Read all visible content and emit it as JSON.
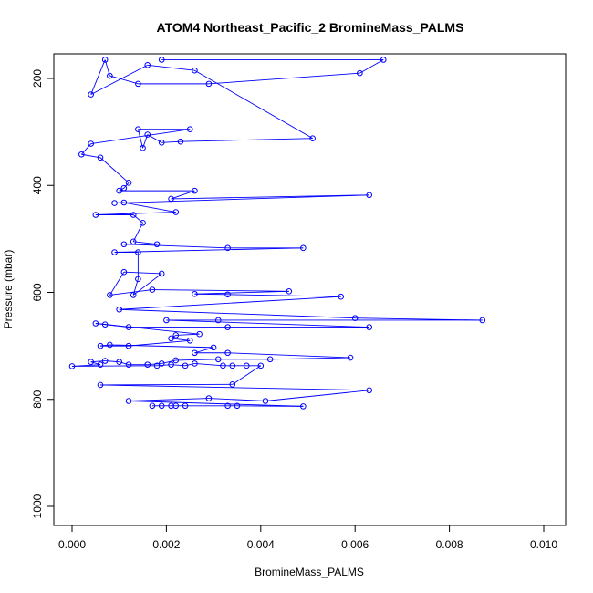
{
  "chart_data": {
    "type": "scatter",
    "title": "ATOM4 Northeast_Pacific_2 BromineMass_PALMS",
    "xlabel": "BromineMass_PALMS",
    "ylabel": "Pressure (mbar)",
    "xlim": [
      0.0,
      0.01
    ],
    "ylim": [
      1030,
      160
    ],
    "y_inverted": true,
    "grid": false,
    "legend": "none",
    "x_ticks": [
      "0.000",
      "0.002",
      "0.004",
      "0.006",
      "0.008",
      "0.010"
    ],
    "x_tick_values": [
      0.0,
      0.002,
      0.004,
      0.006,
      0.008,
      0.01
    ],
    "y_ticks": [
      "200",
      "400",
      "600",
      "800",
      "1000"
    ],
    "y_tick_values": [
      200,
      400,
      600,
      800,
      1000
    ],
    "series": [
      {
        "color": "#0000ff",
        "marker": "open-circle",
        "connected": true,
        "points": [
          [
            0.0019,
            165
          ],
          [
            0.0066,
            165
          ],
          [
            0.0061,
            190
          ],
          [
            0.0029,
            210
          ],
          [
            0.0014,
            210
          ],
          [
            0.0008,
            195
          ],
          [
            0.0007,
            165
          ],
          [
            0.0004,
            230
          ],
          [
            0.0016,
            175
          ],
          [
            0.0026,
            185
          ],
          [
            0.0051,
            312
          ],
          [
            0.0023,
            318
          ],
          [
            0.0019,
            320
          ],
          [
            0.0016,
            305
          ],
          [
            0.0015,
            330
          ],
          [
            0.0014,
            295
          ],
          [
            0.0025,
            295
          ],
          [
            0.0004,
            322
          ],
          [
            0.0002,
            342
          ],
          [
            0.0006,
            348
          ],
          [
            0.0012,
            395
          ],
          [
            0.0011,
            405
          ],
          [
            0.001,
            410
          ],
          [
            0.0026,
            410
          ],
          [
            0.0021,
            425
          ],
          [
            0.0063,
            418
          ],
          [
            0.0009,
            433
          ],
          [
            0.0011,
            432
          ],
          [
            0.0022,
            450
          ],
          [
            0.0005,
            455
          ],
          [
            0.0013,
            455
          ],
          [
            0.0015,
            470
          ],
          [
            0.0013,
            505
          ],
          [
            0.0018,
            510
          ],
          [
            0.0011,
            510
          ],
          [
            0.0033,
            517
          ],
          [
            0.0049,
            517
          ],
          [
            0.0009,
            525
          ],
          [
            0.0014,
            525
          ],
          [
            0.0014,
            575
          ],
          [
            0.0013,
            605
          ],
          [
            0.0019,
            565
          ],
          [
            0.0011,
            562
          ],
          [
            0.0008,
            605
          ],
          [
            0.0017,
            595
          ],
          [
            0.0046,
            598
          ],
          [
            0.0026,
            603
          ],
          [
            0.0033,
            604
          ],
          [
            0.0057,
            608
          ],
          [
            0.001,
            632
          ],
          [
            0.006,
            648
          ],
          [
            0.0087,
            652
          ],
          [
            0.0031,
            652
          ],
          [
            0.002,
            652
          ],
          [
            0.0063,
            665
          ],
          [
            0.0033,
            665
          ],
          [
            0.0012,
            665
          ],
          [
            0.0007,
            660
          ],
          [
            0.0005,
            658
          ],
          [
            0.0027,
            678
          ],
          [
            0.0022,
            680
          ],
          [
            0.0021,
            686
          ],
          [
            0.0025,
            690
          ],
          [
            0.0012,
            700
          ],
          [
            0.0006,
            700
          ],
          [
            0.0008,
            698
          ],
          [
            0.003,
            703
          ],
          [
            0.0026,
            713
          ],
          [
            0.0033,
            713
          ],
          [
            0.0059,
            722
          ],
          [
            0.0042,
            725
          ],
          [
            0.0031,
            725
          ],
          [
            0.0022,
            727
          ],
          [
            0.0019,
            733
          ],
          [
            0.0016,
            735
          ],
          [
            0.0012,
            735
          ],
          [
            0.001,
            730
          ],
          [
            0.0007,
            728
          ],
          [
            0.0004,
            730
          ],
          [
            0.0006,
            735
          ],
          [
            0.0,
            738
          ],
          [
            0.0018,
            737
          ],
          [
            0.0021,
            735
          ],
          [
            0.0024,
            737
          ],
          [
            0.0026,
            733
          ],
          [
            0.0032,
            737
          ],
          [
            0.0034,
            737
          ],
          [
            0.0037,
            737
          ],
          [
            0.004,
            737
          ],
          [
            0.0034,
            772
          ],
          [
            0.0006,
            773
          ],
          [
            0.0063,
            783
          ],
          [
            0.0041,
            803
          ],
          [
            0.0029,
            798
          ],
          [
            0.0012,
            803
          ],
          [
            0.0049,
            813
          ],
          [
            0.0035,
            812
          ],
          [
            0.0033,
            812
          ],
          [
            0.0024,
            812
          ],
          [
            0.0022,
            812
          ],
          [
            0.0021,
            812
          ],
          [
            0.0019,
            812
          ],
          [
            0.0017,
            812
          ]
        ]
      }
    ]
  }
}
